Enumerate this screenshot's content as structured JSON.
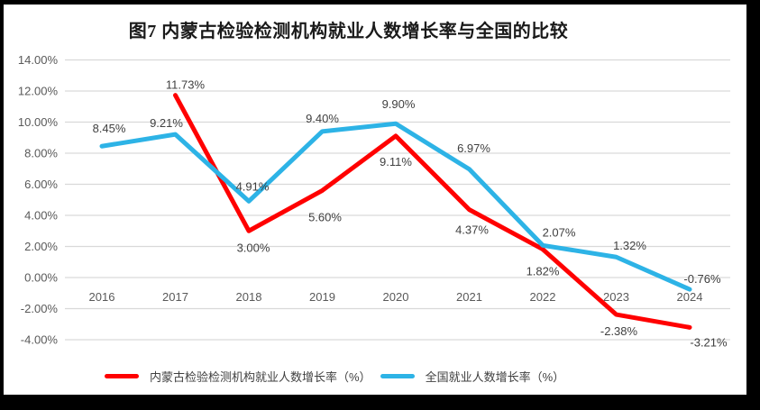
{
  "frame": {
    "border_color": "#000000",
    "page_background": "#ffffff"
  },
  "chart_data": {
    "type": "line",
    "title": "图7 内蒙古检验检测机构就业人数增长率与全国的比较",
    "categories": [
      "2016",
      "2017",
      "2018",
      "2019",
      "2020",
      "2021",
      "2022",
      "2023",
      "2024"
    ],
    "y_axis": {
      "min": -4,
      "max": 14,
      "grid": true,
      "ticks": [
        {
          "value": 14,
          "label": "14.00%"
        },
        {
          "value": 12,
          "label": "12.00%"
        },
        {
          "value": 10,
          "label": "10.00%"
        },
        {
          "value": 8,
          "label": "8.00%"
        },
        {
          "value": 6,
          "label": "6.00%"
        },
        {
          "value": 4,
          "label": "4.00%"
        },
        {
          "value": 2,
          "label": "2.00%"
        },
        {
          "value": 0,
          "label": "0.00%"
        },
        {
          "value": -2,
          "label": "-2.00%"
        },
        {
          "value": -4,
          "label": "-4.00%"
        }
      ]
    },
    "series": [
      {
        "key": "inner-mongolia-testing-institutions",
        "name": "内蒙古检验检测机构就业人数增长率（%）",
        "color": "#ff0000",
        "values": [
          null,
          11.73,
          3.0,
          5.6,
          9.11,
          4.37,
          1.82,
          -2.38,
          -3.21
        ],
        "point_labels": [
          "",
          "11.73%",
          "3.00%",
          "5.60%",
          "9.11%",
          "4.37%",
          "1.82%",
          "-2.38%",
          "-3.21%"
        ],
        "label_dx": [
          0,
          11,
          5,
          3,
          0,
          3,
          0,
          3,
          21
        ],
        "label_dy": [
          0,
          -7,
          23,
          34,
          33,
          27,
          29,
          23,
          21
        ]
      },
      {
        "key": "national",
        "name": "全国就业人数增长率（%）",
        "color": "#2db3e6",
        "values": [
          8.45,
          9.21,
          4.91,
          9.4,
          9.9,
          6.97,
          2.07,
          1.32,
          -0.76
        ],
        "point_labels": [
          "8.45%",
          "9.21%",
          "4.91%",
          "9.40%",
          "9.90%",
          "6.97%",
          "2.07%",
          "1.32%",
          "-0.76%"
        ],
        "label_dx": [
          8,
          -10,
          4,
          0,
          3,
          5,
          18,
          15,
          14
        ],
        "label_dy": [
          -15,
          -8,
          -12,
          -10,
          -17,
          -19,
          -10,
          -8,
          -7
        ]
      }
    ],
    "legend_position": "bottom",
    "gridline_color": "#d9d9d9",
    "axis_text_color": "#595959",
    "label_text_color": "#404040",
    "line_width": 5
  }
}
